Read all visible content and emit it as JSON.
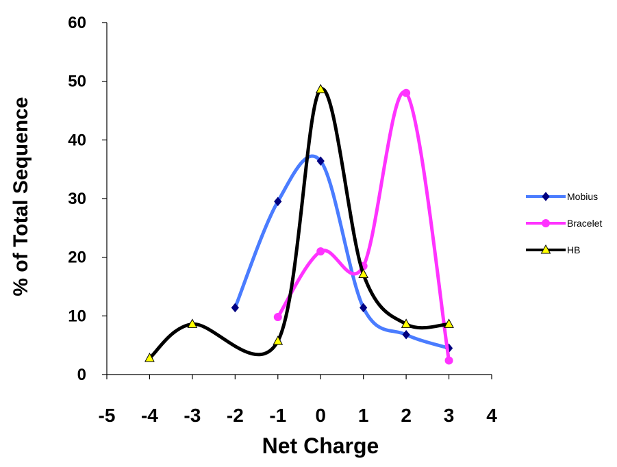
{
  "chart_data": {
    "type": "line",
    "xlabel": "Net Charge",
    "ylabel": "% of Total Sequence",
    "xlim": [
      -5,
      4
    ],
    "ylim": [
      0,
      60
    ],
    "xticks": [
      -5,
      -4,
      -3,
      -2,
      -1,
      0,
      1,
      2,
      3,
      4
    ],
    "yticks": [
      0,
      10,
      20,
      30,
      40,
      50,
      60
    ],
    "smooth": true,
    "grid": false,
    "legend_position": "right",
    "series": [
      {
        "name": "Mobius",
        "color": "#4a7cff",
        "marker": "diamond",
        "marker_color": "#000080",
        "points": [
          [
            -2,
            11.4
          ],
          [
            -1,
            29.5
          ],
          [
            0,
            36.4
          ],
          [
            1,
            11.4
          ],
          [
            2,
            6.8
          ],
          [
            3,
            4.5
          ]
        ]
      },
      {
        "name": "Bracelet",
        "color": "#ff33ff",
        "marker": "circle",
        "marker_color": "#ff33ff",
        "points": [
          [
            -1,
            9.8
          ],
          [
            0,
            21.0
          ],
          [
            1,
            18.5
          ],
          [
            2,
            48.0
          ],
          [
            3,
            2.4
          ]
        ]
      },
      {
        "name": "HB",
        "color": "#000000",
        "marker": "triangle",
        "marker_color": "#ffff00",
        "points": [
          [
            -4,
            2.8
          ],
          [
            -3,
            8.6
          ],
          [
            -1,
            5.7
          ],
          [
            0,
            48.6
          ],
          [
            1,
            17.1
          ],
          [
            2,
            8.6
          ],
          [
            3,
            8.6
          ]
        ]
      }
    ]
  }
}
